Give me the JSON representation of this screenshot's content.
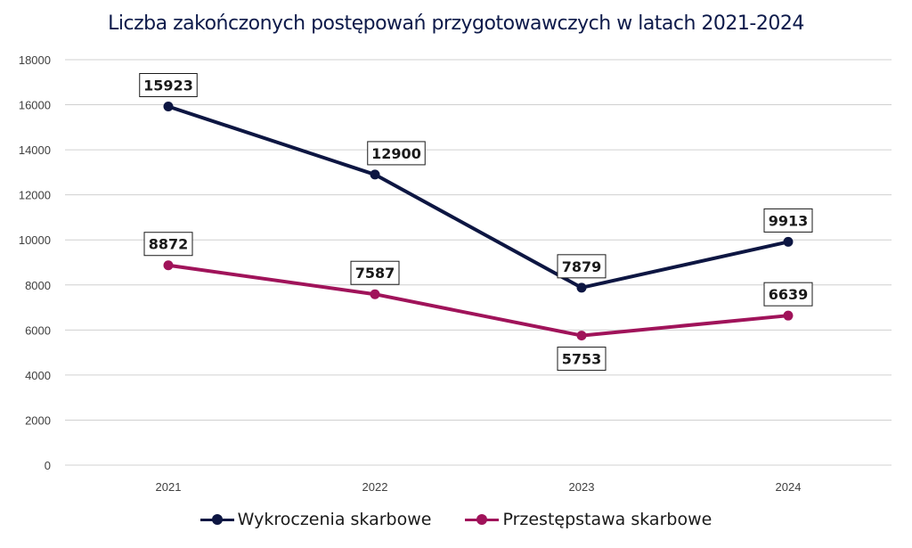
{
  "chart_data": {
    "type": "line",
    "title": "Liczba zakończonych postępowań przygotowawczych w latach 2021-2024",
    "categories": [
      "2021",
      "2022",
      "2023",
      "2024"
    ],
    "series": [
      {
        "name": "Wykroczenia skarbowe",
        "color": "#0d1642",
        "values": [
          15923,
          12900,
          7879,
          9913
        ]
      },
      {
        "name": "Przestępstawa skarbowe",
        "color": "#a0135a",
        "values": [
          8872,
          7587,
          5753,
          6639
        ]
      }
    ],
    "xlabel": "",
    "ylabel": "",
    "ylim": [
      0,
      18000
    ],
    "yticks": [
      0,
      2000,
      4000,
      6000,
      8000,
      10000,
      12000,
      14000,
      16000,
      18000
    ],
    "grid": true,
    "legend_position": "bottom"
  }
}
